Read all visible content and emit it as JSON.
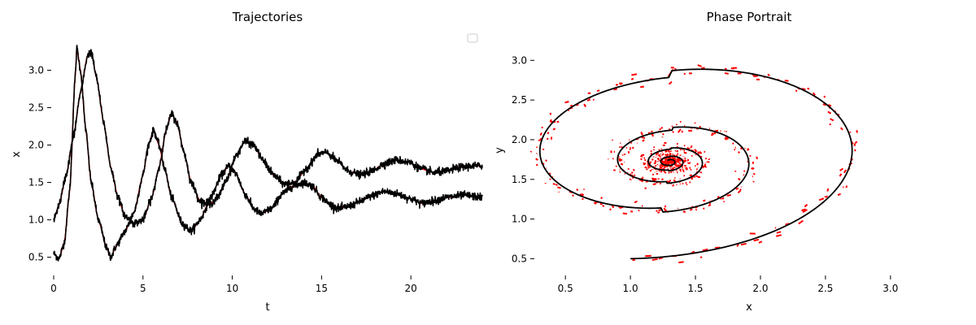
{
  "colors": {
    "model": "#000000",
    "noisy": "#ff0000",
    "background": "#ffffff"
  },
  "chart_data": [
    {
      "type": "line",
      "title": "Trajectories",
      "xlabel": "t",
      "ylabel": "x",
      "xlim": [
        0,
        24
      ],
      "ylim": [
        0.3,
        3.45
      ],
      "xticks": [
        0,
        5,
        10,
        15,
        20
      ],
      "yticks": [
        0.5,
        1.0,
        1.5,
        2.0,
        2.5,
        3.0
      ],
      "grid": false,
      "legend": "top-right (empty box)",
      "series": [
        {
          "values": [
            [
              0,
              0.55
            ],
            [
              0.3,
              0.48
            ],
            [
              0.6,
              0.7
            ],
            [
              0.9,
              1.4
            ],
            [
              1.2,
              2.9
            ],
            [
              1.3,
              3.3
            ],
            [
              1.5,
              3.0
            ],
            [
              1.8,
              2.2
            ],
            [
              2.1,
              1.5
            ],
            [
              2.5,
              1.0
            ],
            [
              3.0,
              0.6
            ],
            [
              3.2,
              0.5
            ],
            [
              3.5,
              0.65
            ],
            [
              4.0,
              0.85
            ],
            [
              4.5,
              1.1
            ],
            [
              5.0,
              1.6
            ],
            [
              5.3,
              2.0
            ],
            [
              5.6,
              2.2
            ],
            [
              5.9,
              2.0
            ],
            [
              6.2,
              1.7
            ],
            [
              6.6,
              1.3
            ],
            [
              7.2,
              0.95
            ],
            [
              7.7,
              0.85
            ],
            [
              8.2,
              1.0
            ],
            [
              8.8,
              1.3
            ],
            [
              9.4,
              1.6
            ],
            [
              9.8,
              1.72
            ],
            [
              10.2,
              1.62
            ],
            [
              10.7,
              1.35
            ],
            [
              11.2,
              1.15
            ],
            [
              11.6,
              1.08
            ],
            [
              12.2,
              1.15
            ],
            [
              12.8,
              1.35
            ],
            [
              13.4,
              1.45
            ],
            [
              14.0,
              1.5
            ],
            [
              14.5,
              1.45
            ],
            [
              15.0,
              1.3
            ],
            [
              15.5,
              1.2
            ],
            [
              16.0,
              1.15
            ],
            [
              16.5,
              1.18
            ],
            [
              17.2,
              1.25
            ],
            [
              17.8,
              1.32
            ],
            [
              18.5,
              1.38
            ],
            [
              19.2,
              1.35
            ],
            [
              20.0,
              1.28
            ],
            [
              20.6,
              1.22
            ],
            [
              21.2,
              1.25
            ],
            [
              22.0,
              1.3
            ],
            [
              23.0,
              1.33
            ],
            [
              24,
              1.3
            ]
          ]
        },
        {
          "values": [
            [
              0,
              1.0
            ],
            [
              0.3,
              1.2
            ],
            [
              0.7,
              1.6
            ],
            [
              1.1,
              2.1
            ],
            [
              1.5,
              2.7
            ],
            [
              1.9,
              3.2
            ],
            [
              2.1,
              3.25
            ],
            [
              2.4,
              2.9
            ],
            [
              2.8,
              2.3
            ],
            [
              3.2,
              1.7
            ],
            [
              3.6,
              1.3
            ],
            [
              4.0,
              1.05
            ],
            [
              4.5,
              0.95
            ],
            [
              5.0,
              1.0
            ],
            [
              5.5,
              1.3
            ],
            [
              5.9,
              1.7
            ],
            [
              6.3,
              2.2
            ],
            [
              6.6,
              2.42
            ],
            [
              6.9,
              2.3
            ],
            [
              7.3,
              1.9
            ],
            [
              7.7,
              1.5
            ],
            [
              8.2,
              1.25
            ],
            [
              8.7,
              1.2
            ],
            [
              9.2,
              1.3
            ],
            [
              9.7,
              1.55
            ],
            [
              10.2,
              1.85
            ],
            [
              10.7,
              2.05
            ],
            [
              11.2,
              2.0
            ],
            [
              11.7,
              1.8
            ],
            [
              12.3,
              1.6
            ],
            [
              12.9,
              1.48
            ],
            [
              13.5,
              1.5
            ],
            [
              14.2,
              1.7
            ],
            [
              14.8,
              1.88
            ],
            [
              15.3,
              1.9
            ],
            [
              15.9,
              1.78
            ],
            [
              16.5,
              1.65
            ],
            [
              17.2,
              1.6
            ],
            [
              17.8,
              1.65
            ],
            [
              18.5,
              1.75
            ],
            [
              19.2,
              1.8
            ],
            [
              19.9,
              1.77
            ],
            [
              20.6,
              1.68
            ],
            [
              21.3,
              1.63
            ],
            [
              22.0,
              1.65
            ],
            [
              22.7,
              1.7
            ],
            [
              23.4,
              1.72
            ],
            [
              24,
              1.72
            ]
          ]
        }
      ]
    },
    {
      "type": "line",
      "title": "Phase Portrait",
      "xlabel": "x",
      "ylabel": "y",
      "xlim": [
        0.28,
        3.42
      ],
      "ylim": [
        0.33,
        3.3
      ],
      "xticks": [
        0.5,
        1.0,
        1.5,
        2.0,
        2.5,
        3.0
      ],
      "yticks": [
        0.5,
        1.0,
        1.5,
        2.0,
        2.5,
        3.0
      ],
      "grid": false,
      "spiral": {
        "start": [
          1.0,
          0.5
        ],
        "center": [
          1.3,
          1.72
        ]
      }
    }
  ]
}
